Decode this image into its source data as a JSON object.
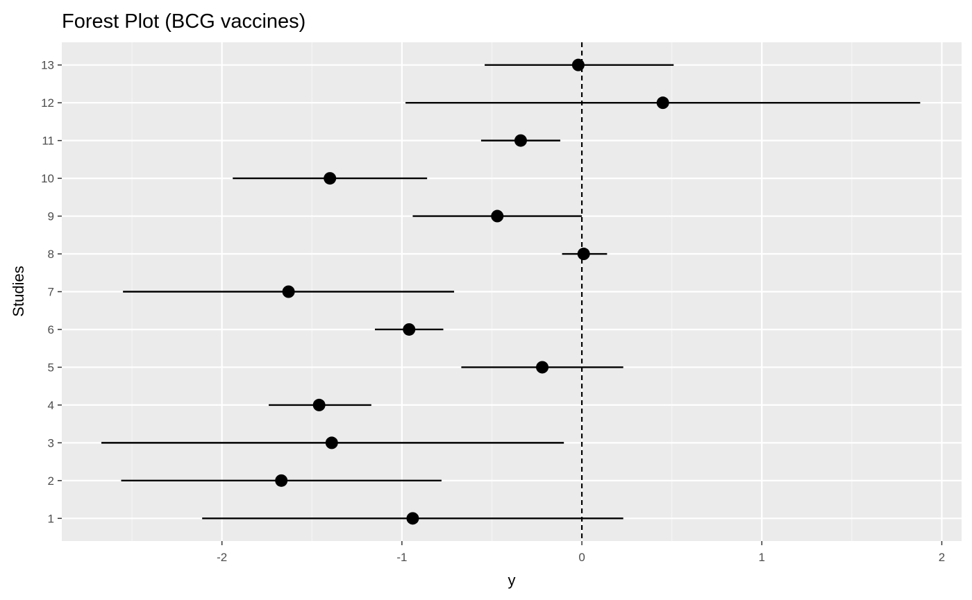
{
  "chart_data": {
    "type": "scatter",
    "title": "Forest Plot (BCG vaccines)",
    "xlabel": "y",
    "ylabel": "Studies",
    "xlim": [
      -2.89,
      2.11
    ],
    "x_ticks": [
      -2,
      -1,
      0,
      1,
      2
    ],
    "x_tick_labels": [
      "-2",
      "-1",
      "0",
      "1",
      "2"
    ],
    "ylim": [
      0.4,
      13.6
    ],
    "reference_line": {
      "x": 0,
      "style": "dashed"
    },
    "grid": true,
    "legend": "none",
    "studies": [
      {
        "study": "1",
        "y": -0.94,
        "ci_lower": -2.11,
        "ci_upper": 0.23
      },
      {
        "study": "2",
        "y": -1.67,
        "ci_lower": -2.56,
        "ci_upper": -0.78
      },
      {
        "study": "3",
        "y": -1.39,
        "ci_lower": -2.67,
        "ci_upper": -0.1
      },
      {
        "study": "4",
        "y": -1.46,
        "ci_lower": -1.74,
        "ci_upper": -1.17
      },
      {
        "study": "5",
        "y": -0.22,
        "ci_lower": -0.67,
        "ci_upper": 0.23
      },
      {
        "study": "6",
        "y": -0.96,
        "ci_lower": -1.15,
        "ci_upper": -0.77
      },
      {
        "study": "7",
        "y": -1.63,
        "ci_lower": -2.55,
        "ci_upper": -0.71
      },
      {
        "study": "8",
        "y": 0.01,
        "ci_lower": -0.11,
        "ci_upper": 0.14
      },
      {
        "study": "9",
        "y": -0.47,
        "ci_lower": -0.94,
        "ci_upper": 0.0
      },
      {
        "study": "10",
        "y": -1.4,
        "ci_lower": -1.94,
        "ci_upper": -0.86
      },
      {
        "study": "11",
        "y": -0.34,
        "ci_lower": -0.56,
        "ci_upper": -0.12
      },
      {
        "study": "12",
        "y": 0.45,
        "ci_lower": -0.98,
        "ci_upper": 1.88
      },
      {
        "study": "13",
        "y": -0.02,
        "ci_lower": -0.54,
        "ci_upper": 0.51
      }
    ],
    "colors": {
      "panel_background": "#ebebeb",
      "grid_major": "#ffffff",
      "grid_minor": "#f5f5f5",
      "mark": "#000000"
    }
  }
}
